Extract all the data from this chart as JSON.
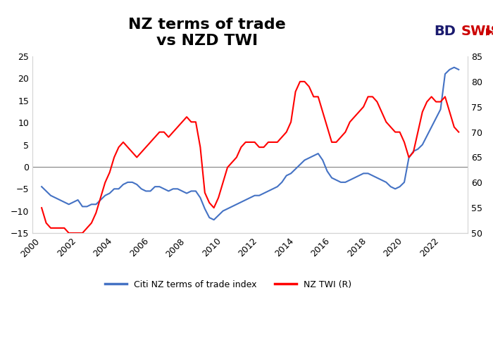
{
  "title": "NZ terms of trade\nvs NZD TWI",
  "blue_label": "Citi NZ terms of trade index",
  "red_label": "NZ TWI (R)",
  "left_ylim": [
    -15,
    25
  ],
  "right_ylim": [
    50,
    85
  ],
  "left_yticks": [
    -15,
    -10,
    -5,
    0,
    5,
    10,
    15,
    20,
    25
  ],
  "right_yticks": [
    50,
    55,
    60,
    65,
    70,
    75,
    80,
    85
  ],
  "xticks": [
    2000,
    2002,
    2004,
    2006,
    2008,
    2010,
    2012,
    2014,
    2016,
    2018,
    2020,
    2022
  ],
  "xlim": [
    1999.5,
    2023.5
  ],
  "blue_color": "#4472C4",
  "red_color": "#FF0000",
  "background_color": "#FFFFFF",
  "title_fontsize": 16,
  "logo_text_bd": "BD",
  "logo_text_swiss": "SWISS",
  "blue_x": [
    2000.0,
    2000.25,
    2000.5,
    2000.75,
    2001.0,
    2001.25,
    2001.5,
    2001.75,
    2002.0,
    2002.25,
    2002.5,
    2002.75,
    2003.0,
    2003.25,
    2003.5,
    2003.75,
    2004.0,
    2004.25,
    2004.5,
    2004.75,
    2005.0,
    2005.25,
    2005.5,
    2005.75,
    2006.0,
    2006.25,
    2006.5,
    2006.75,
    2007.0,
    2007.25,
    2007.5,
    2007.75,
    2008.0,
    2008.25,
    2008.5,
    2008.75,
    2009.0,
    2009.25,
    2009.5,
    2009.75,
    2010.0,
    2010.25,
    2010.5,
    2010.75,
    2011.0,
    2011.25,
    2011.5,
    2011.75,
    2012.0,
    2012.25,
    2012.5,
    2012.75,
    2013.0,
    2013.25,
    2013.5,
    2013.75,
    2014.0,
    2014.25,
    2014.5,
    2014.75,
    2015.0,
    2015.25,
    2015.5,
    2015.75,
    2016.0,
    2016.25,
    2016.5,
    2016.75,
    2017.0,
    2017.25,
    2017.5,
    2017.75,
    2018.0,
    2018.25,
    2018.5,
    2018.75,
    2019.0,
    2019.25,
    2019.5,
    2019.75,
    2020.0,
    2020.25,
    2020.5,
    2020.75,
    2021.0,
    2021.25,
    2021.5,
    2021.75,
    2022.0,
    2022.25,
    2022.5,
    2022.75,
    2023.0
  ],
  "blue_y": [
    -4.5,
    -5.5,
    -6.5,
    -7.0,
    -7.5,
    -8.0,
    -8.5,
    -8.0,
    -7.5,
    -9.0,
    -9.0,
    -8.5,
    -8.5,
    -7.5,
    -6.5,
    -6.0,
    -5.0,
    -5.0,
    -4.0,
    -3.5,
    -3.5,
    -4.0,
    -5.0,
    -5.5,
    -5.5,
    -4.5,
    -4.5,
    -5.0,
    -5.5,
    -5.0,
    -5.0,
    -5.5,
    -6.0,
    -5.5,
    -5.5,
    -7.0,
    -9.5,
    -11.5,
    -12.0,
    -11.0,
    -10.0,
    -9.5,
    -9.0,
    -8.5,
    -8.0,
    -7.5,
    -7.0,
    -6.5,
    -6.5,
    -6.0,
    -5.5,
    -5.0,
    -4.5,
    -3.5,
    -2.0,
    -1.5,
    -0.5,
    0.5,
    1.5,
    2.0,
    2.5,
    3.0,
    1.5,
    -1.0,
    -2.5,
    -3.0,
    -3.5,
    -3.5,
    -3.0,
    -2.5,
    -2.0,
    -1.5,
    -1.5,
    -2.0,
    -2.5,
    -3.0,
    -3.5,
    -4.5,
    -5.0,
    -4.5,
    -3.5,
    2.0,
    3.5,
    4.0,
    5.0,
    7.0,
    9.0,
    11.0,
    13.0,
    21.0,
    22.0,
    22.5,
    22.0
  ],
  "red_x": [
    2000.0,
    2000.25,
    2000.5,
    2000.75,
    2001.0,
    2001.25,
    2001.5,
    2001.75,
    2002.0,
    2002.25,
    2002.5,
    2002.75,
    2003.0,
    2003.25,
    2003.5,
    2003.75,
    2004.0,
    2004.25,
    2004.5,
    2004.75,
    2005.0,
    2005.25,
    2005.5,
    2005.75,
    2006.0,
    2006.25,
    2006.5,
    2006.75,
    2007.0,
    2007.25,
    2007.5,
    2007.75,
    2008.0,
    2008.25,
    2008.5,
    2008.75,
    2009.0,
    2009.25,
    2009.5,
    2009.75,
    2010.0,
    2010.25,
    2010.5,
    2010.75,
    2011.0,
    2011.25,
    2011.5,
    2011.75,
    2012.0,
    2012.25,
    2012.5,
    2012.75,
    2013.0,
    2013.25,
    2013.5,
    2013.75,
    2014.0,
    2014.25,
    2014.5,
    2014.75,
    2015.0,
    2015.25,
    2015.5,
    2015.75,
    2016.0,
    2016.25,
    2016.5,
    2016.75,
    2017.0,
    2017.25,
    2017.5,
    2017.75,
    2018.0,
    2018.25,
    2018.5,
    2018.75,
    2019.0,
    2019.25,
    2019.5,
    2019.75,
    2020.0,
    2020.25,
    2020.5,
    2020.75,
    2021.0,
    2021.25,
    2021.5,
    2021.75,
    2022.0,
    2022.25,
    2022.5,
    2022.75,
    2023.0
  ],
  "red_y": [
    55,
    52,
    51,
    51,
    51,
    51,
    50,
    50,
    50,
    50,
    51,
    52,
    54,
    57,
    60,
    62,
    65,
    67,
    68,
    67,
    66,
    65,
    66,
    67,
    68,
    69,
    70,
    70,
    69,
    70,
    71,
    72,
    73,
    72,
    72,
    67,
    58,
    56,
    55,
    57,
    60,
    63,
    64,
    65,
    67,
    68,
    68,
    68,
    67,
    67,
    68,
    68,
    68,
    69,
    70,
    72,
    78,
    80,
    80,
    79,
    77,
    77,
    74,
    71,
    68,
    68,
    69,
    70,
    72,
    73,
    74,
    75,
    77,
    77,
    76,
    74,
    72,
    71,
    70,
    70,
    68,
    65,
    66,
    70,
    74,
    76,
    77,
    76,
    76,
    77,
    74,
    71,
    70
  ]
}
